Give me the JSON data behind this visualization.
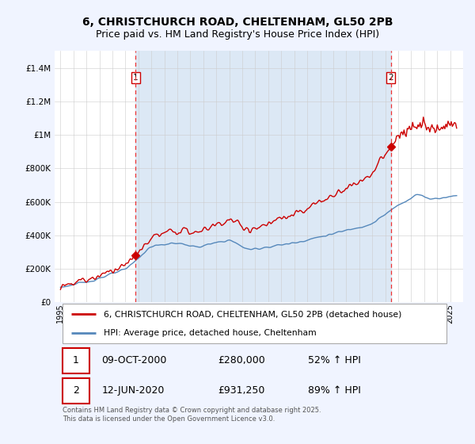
{
  "title_line1": "6, CHRISTCHURCH ROAD, CHELTENHAM, GL50 2PB",
  "title_line2": "Price paid vs. HM Land Registry's House Price Index (HPI)",
  "bg_color": "#f0f4ff",
  "plot_bg_color": "#ffffff",
  "red_line_color": "#cc0000",
  "blue_line_color": "#5588bb",
  "fill_color": "#dce8f5",
  "vline_color": "#ee3333",
  "ylim": [
    0,
    1500000
  ],
  "yticks": [
    0,
    200000,
    400000,
    600000,
    800000,
    1000000,
    1200000,
    1400000
  ],
  "ytick_labels": [
    "£0",
    "£200K",
    "£400K",
    "£600K",
    "£800K",
    "£1M",
    "£1.2M",
    "£1.4M"
  ],
  "sale1_year": 2000.78,
  "sale1_price": 280000,
  "sale1_label": "1",
  "sale2_year": 2020.44,
  "sale2_price": 931250,
  "sale2_label": "2",
  "legend_red_label": "6, CHRISTCHURCH ROAD, CHELTENHAM, GL50 2PB (detached house)",
  "legend_blue_label": "HPI: Average price, detached house, Cheltenham",
  "table_row1": [
    "1",
    "09-OCT-2000",
    "£280,000",
    "52% ↑ HPI"
  ],
  "table_row2": [
    "2",
    "12-JUN-2020",
    "£931,250",
    "89% ↑ HPI"
  ],
  "footnote": "Contains HM Land Registry data © Crown copyright and database right 2025.\nThis data is licensed under the Open Government Licence v3.0.",
  "title_fontsize": 10,
  "subtitle_fontsize": 9,
  "tick_fontsize": 7.5,
  "legend_fontsize": 8
}
